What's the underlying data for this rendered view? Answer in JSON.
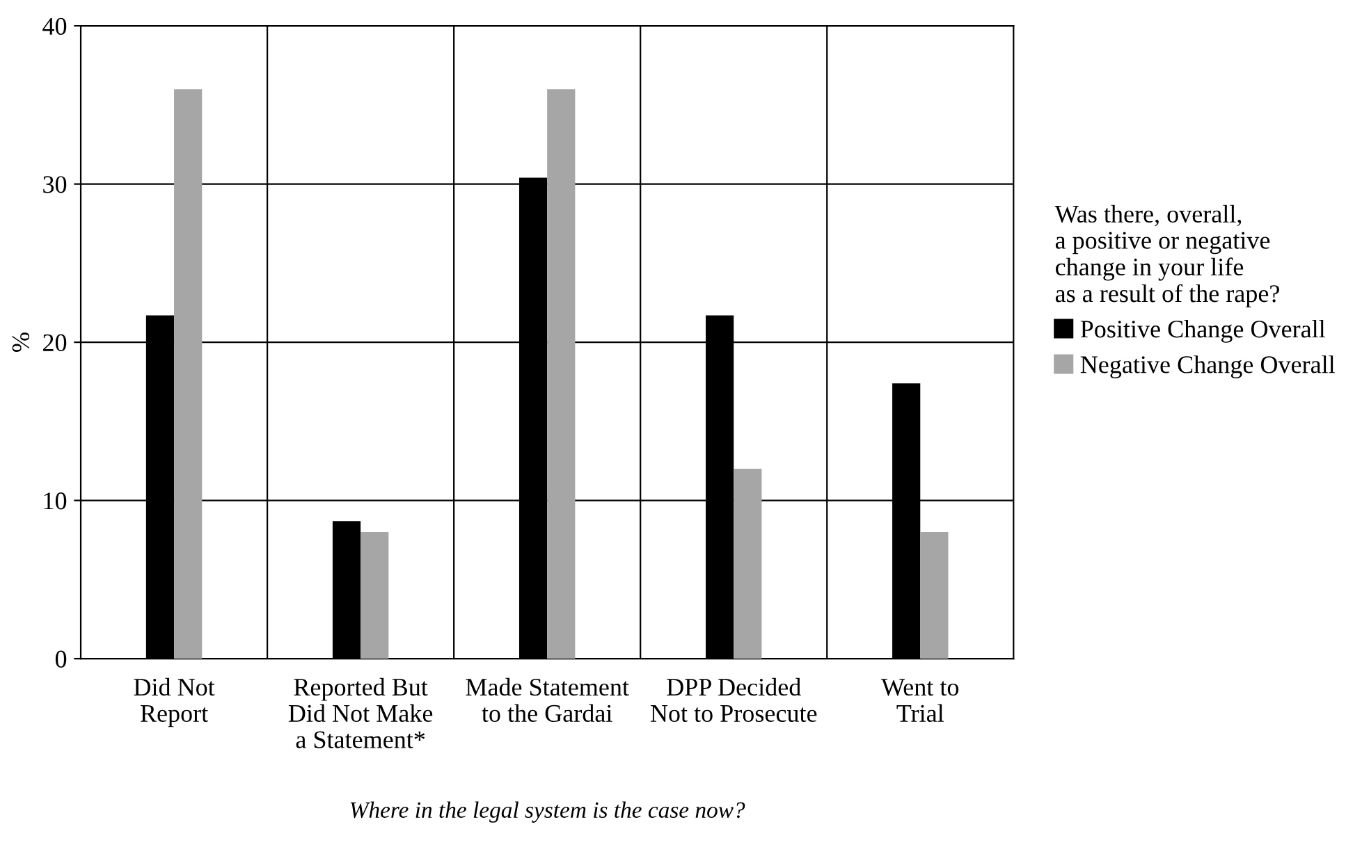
{
  "chart_data": {
    "type": "bar",
    "categories": [
      "Did Not\nReport",
      "Reported But\nDid Not Make\na Statement*",
      "Made Statement\nto the Gardai",
      "DPP Decided\nNot to Prosecute",
      "Went to\nTrial"
    ],
    "series": [
      {
        "name": "Positive Change Overall",
        "color": "#000000",
        "values": [
          21.7,
          8.7,
          30.4,
          21.7,
          17.4
        ]
      },
      {
        "name": "Negative Change Overall",
        "color": "#a6a6a6",
        "values": [
          36.0,
          8.0,
          36.0,
          12.0,
          8.0
        ]
      }
    ],
    "ylabel": "%",
    "xlabel": "Where in the legal system is the case now?",
    "legend_title": "Was there, overall,\na positive or negative\nchange in your life\nas a result of the rape?",
    "ylim": [
      0,
      40
    ],
    "yticks": [
      0,
      10,
      20,
      30,
      40
    ],
    "grid": true,
    "legend": "right"
  }
}
